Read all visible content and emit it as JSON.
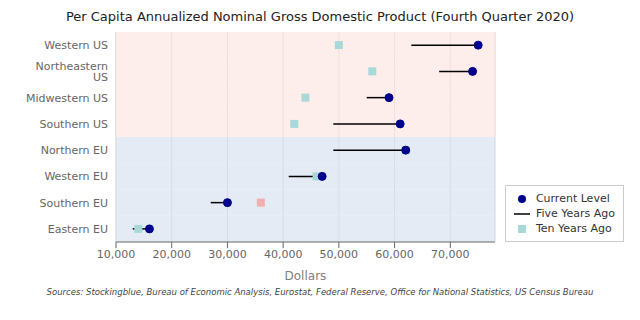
{
  "chart_data": {
    "type": "dot",
    "title": "Per Capita Annualized Nominal Gross Domestic Product (Fourth Quarter 2020)",
    "xlabel": "Dollars",
    "annotations": [
      "Sources: Stockingblue, Bureau of Economic Analysis, Eurostat, Federal Reserve, Office for National Statistics, US Census Bureau"
    ],
    "categories": [
      "Eastern EU",
      "Southern EU",
      "Western EU",
      "Northern EU",
      "Southern US",
      "Midwestern US",
      "Northeastern US",
      "Western US"
    ],
    "colors": [
      "#dce4f0",
      "#dce4f0",
      "#dce4f0",
      "#dce4f0",
      "#fce8e4",
      "#fce8e4",
      "#fce8e4",
      "#fce8e4"
    ],
    "series": [
      {
        "name": "Current Level",
        "color": "#00008B",
        "marker": "circle",
        "values": [
          16000,
          30000,
          47000,
          62000,
          61000,
          59000,
          74000,
          75000
        ]
      },
      {
        "name": "Five Years Ago",
        "color": "#000000",
        "type": "line",
        "values": [
          13000,
          27000,
          41000,
          49000,
          49000,
          55000,
          68000,
          63000
        ]
      },
      {
        "name": "Ten Years Ago",
        "color": "#a8d8d8",
        "colors": [
          "#a8d8d8",
          "#f0b0b0",
          "#a8d8d8",
          "#a8d8d8",
          "#a8d8d8",
          "#a8d8d8",
          "#a8d8d8",
          "#a8d8d8"
        ],
        "marker": "square",
        "values": [
          14000,
          36000,
          46000,
          62000,
          42000,
          44000,
          56000,
          50000
        ]
      }
    ],
    "xlim": [
      10000,
      78000
    ],
    "xticks": [
      {
        "value": 10000,
        "label": "10,000"
      },
      {
        "value": 20000,
        "label": "20,000"
      },
      {
        "value": 30000,
        "label": "30,000"
      },
      {
        "value": 40000,
        "label": "40,000"
      },
      {
        "value": 50000,
        "label": "50,000"
      },
      {
        "value": 60000,
        "label": "60,000"
      },
      {
        "value": 70000,
        "label": "70,000"
      }
    ],
    "grid": "x",
    "legend": "lower right"
  }
}
